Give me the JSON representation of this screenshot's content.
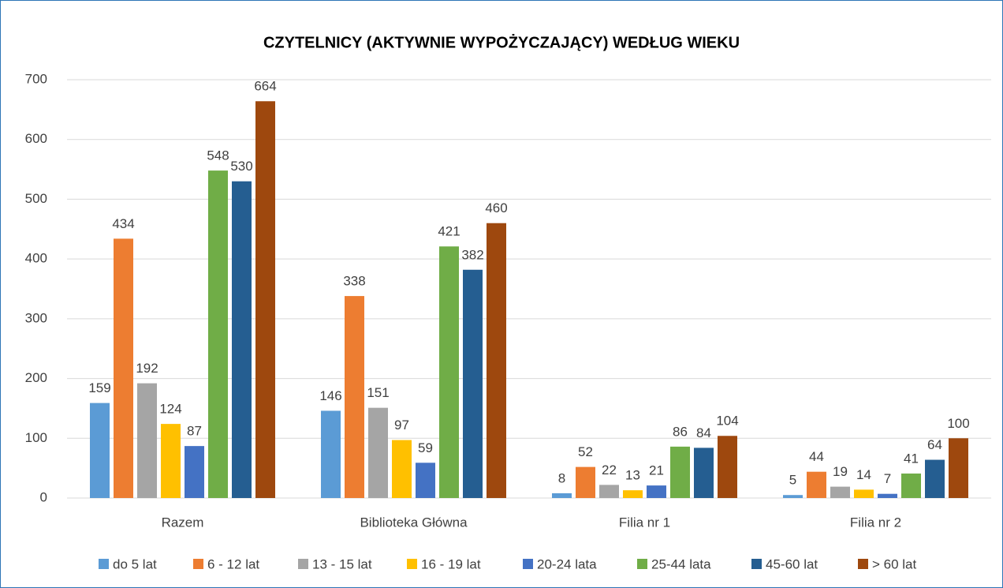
{
  "chart_data": {
    "type": "bar",
    "title": "CZYTELNICY (AKTYWNIE WYPOŻYCZAJĄCY) WEDŁUG WIEKU",
    "categories": [
      "Razem",
      "Biblioteka Główna",
      "Filia nr 1",
      "Filia nr 2"
    ],
    "series": [
      {
        "name": "do 5 lat",
        "color": "#5b9bd5",
        "values": [
          159,
          146,
          8,
          5
        ]
      },
      {
        "name": "6 - 12 lat",
        "color": "#ed7d31",
        "values": [
          434,
          338,
          52,
          44
        ]
      },
      {
        "name": "13 - 15 lat",
        "color": "#a5a5a5",
        "values": [
          192,
          151,
          22,
          19
        ]
      },
      {
        "name": "16 - 19 lat",
        "color": "#ffc000",
        "values": [
          124,
          97,
          13,
          14
        ]
      },
      {
        "name": "20-24 lata",
        "color": "#4472c4",
        "values": [
          87,
          59,
          21,
          7
        ]
      },
      {
        "name": "25-44 lata",
        "color": "#70ad47",
        "values": [
          548,
          421,
          86,
          41
        ]
      },
      {
        "name": "45-60 lat",
        "color": "#255e91",
        "values": [
          530,
          382,
          84,
          64
        ]
      },
      {
        "name": "> 60 lat",
        "color": "#9e480e",
        "values": [
          664,
          460,
          104,
          100
        ]
      }
    ],
    "ylim": [
      0,
      700
    ],
    "yticks": [
      0,
      100,
      200,
      300,
      400,
      500,
      600,
      700
    ],
    "grid": true,
    "legend": "bottom"
  }
}
